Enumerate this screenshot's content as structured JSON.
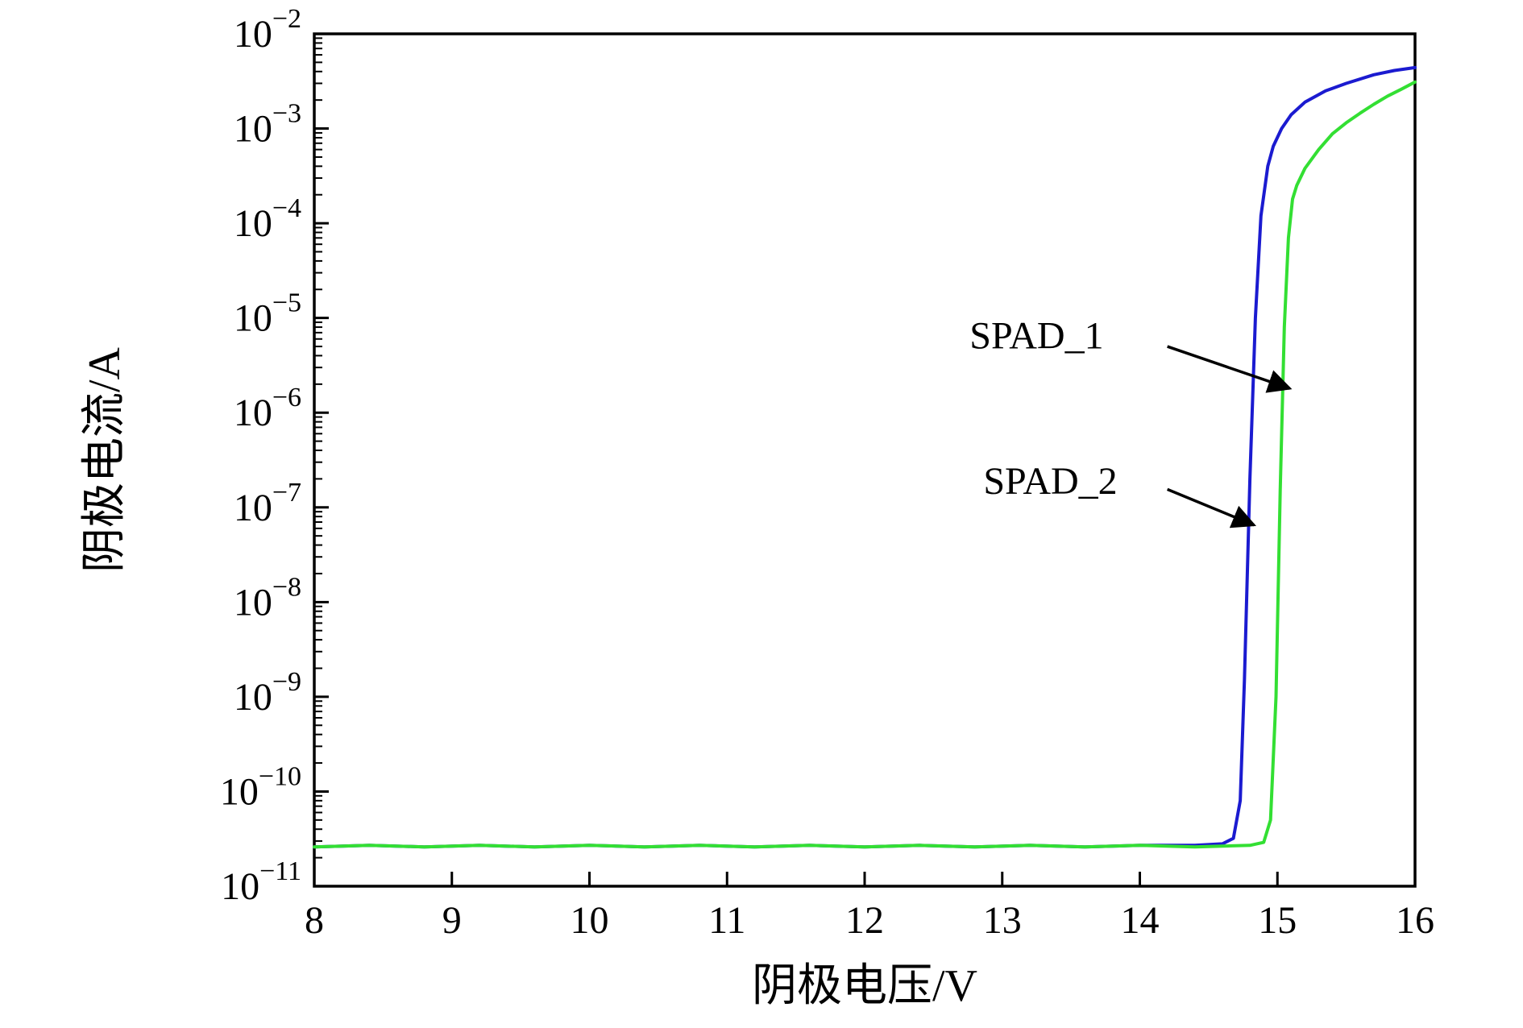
{
  "figure": {
    "background": "#ffffff",
    "axis_color": "#000000"
  },
  "chart_data": {
    "type": "line",
    "title": "",
    "xlabel": "阴极电压/V",
    "ylabel": "阴极电流/A",
    "x_scale": "linear",
    "y_scale": "log",
    "xlim": [
      8,
      16
    ],
    "ylim": [
      1e-11,
      0.01
    ],
    "x_ticks": [
      8,
      9,
      10,
      11,
      12,
      13,
      14,
      15,
      16
    ],
    "y_tick_exponents": [
      -11,
      -10,
      -9,
      -8,
      -7,
      -6,
      -5,
      -4,
      -3,
      -2
    ],
    "grid": false,
    "legend_position": "none",
    "series": [
      {
        "name": "SPAD_2",
        "color": "#1b1bd0",
        "description": "blue curve, flat dark current ~2.7e-11 A, avalanche breakdown near 14.75 V",
        "points": [
          [
            8,
            2.6e-11
          ],
          [
            8.4,
            2.7e-11
          ],
          [
            8.8,
            2.6e-11
          ],
          [
            9.2,
            2.7e-11
          ],
          [
            9.6,
            2.6e-11
          ],
          [
            10,
            2.7e-11
          ],
          [
            10.4,
            2.6e-11
          ],
          [
            10.8,
            2.7e-11
          ],
          [
            11.2,
            2.6e-11
          ],
          [
            11.6,
            2.7e-11
          ],
          [
            12,
            2.6e-11
          ],
          [
            12.4,
            2.7e-11
          ],
          [
            12.8,
            2.6e-11
          ],
          [
            13.2,
            2.7e-11
          ],
          [
            13.6,
            2.6e-11
          ],
          [
            14,
            2.7e-11
          ],
          [
            14.4,
            2.7e-11
          ],
          [
            14.6,
            2.8e-11
          ],
          [
            14.68,
            3.2e-11
          ],
          [
            14.73,
            8e-11
          ],
          [
            14.76,
            1.5e-09
          ],
          [
            14.8,
            2e-07
          ],
          [
            14.84,
            1e-05
          ],
          [
            14.88,
            0.00012
          ],
          [
            14.93,
            0.0004
          ],
          [
            14.97,
            0.00065
          ],
          [
            15.03,
            0.001
          ],
          [
            15.1,
            0.0014
          ],
          [
            15.2,
            0.0019
          ],
          [
            15.35,
            0.0025
          ],
          [
            15.5,
            0.003
          ],
          [
            15.7,
            0.0037
          ],
          [
            15.85,
            0.0041
          ],
          [
            16,
            0.0044
          ]
        ]
      },
      {
        "name": "SPAD_1",
        "color": "#33df33",
        "description": "green curve, flat dark current ~2.7e-11 A, avalanche breakdown near 15.0 V",
        "points": [
          [
            8,
            2.6e-11
          ],
          [
            8.4,
            2.7e-11
          ],
          [
            8.8,
            2.6e-11
          ],
          [
            9.2,
            2.7e-11
          ],
          [
            9.6,
            2.6e-11
          ],
          [
            10,
            2.7e-11
          ],
          [
            10.4,
            2.6e-11
          ],
          [
            10.8,
            2.7e-11
          ],
          [
            11.2,
            2.6e-11
          ],
          [
            11.6,
            2.7e-11
          ],
          [
            12,
            2.6e-11
          ],
          [
            12.4,
            2.7e-11
          ],
          [
            12.8,
            2.6e-11
          ],
          [
            13.2,
            2.7e-11
          ],
          [
            13.6,
            2.6e-11
          ],
          [
            14,
            2.7e-11
          ],
          [
            14.4,
            2.6e-11
          ],
          [
            14.8,
            2.7e-11
          ],
          [
            14.9,
            2.9e-11
          ],
          [
            14.95,
            5e-11
          ],
          [
            14.99,
            1e-09
          ],
          [
            15.02,
            1.5e-07
          ],
          [
            15.05,
            8e-06
          ],
          [
            15.08,
            7e-05
          ],
          [
            15.11,
            0.00018
          ],
          [
            15.14,
            0.00025
          ],
          [
            15.2,
            0.00038
          ],
          [
            15.3,
            0.0006
          ],
          [
            15.4,
            0.00088
          ],
          [
            15.5,
            0.00115
          ],
          [
            15.6,
            0.00145
          ],
          [
            15.7,
            0.0018
          ],
          [
            15.8,
            0.0022
          ],
          [
            15.9,
            0.0026
          ],
          [
            16,
            0.0031
          ]
        ]
      }
    ],
    "annotations": [
      {
        "label": "SPAD_1",
        "text_xy": [
          13.25,
          6.5e-06
        ],
        "arrow_from": [
          14.2,
          5e-06
        ],
        "arrow_to": [
          15.09,
          1.8e-06
        ],
        "color": "#000000"
      },
      {
        "label": "SPAD_2",
        "text_xy": [
          13.35,
          1.9e-07
        ],
        "arrow_from": [
          14.2,
          1.55e-07
        ],
        "arrow_to": [
          14.83,
          6.5e-08
        ],
        "color": "#000000"
      }
    ]
  }
}
